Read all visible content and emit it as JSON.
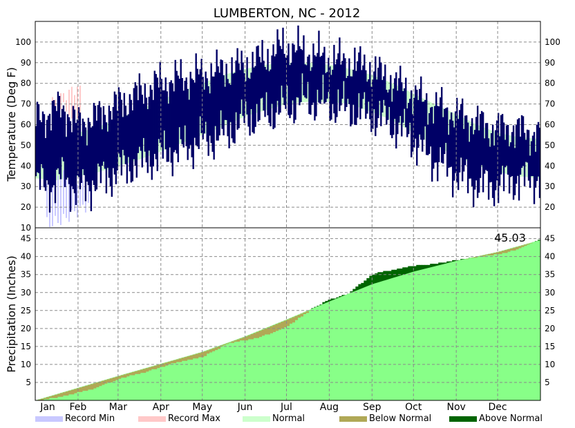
{
  "chart_data": [
    {
      "type": "bar",
      "title": "LUMBERTON, NC - 2012",
      "ylabel": "Temperature (Deg F)",
      "ylim": [
        10,
        110
      ],
      "yticks": [
        10,
        20,
        30,
        40,
        50,
        60,
        70,
        80,
        90,
        100
      ],
      "grid": true,
      "series_note": "daily high/low temperature bars over normal and record bands",
      "normal": {
        "day": [
          0,
          15,
          31,
          46,
          60,
          75,
          91,
          106,
          121,
          136,
          152,
          167,
          182,
          197,
          213,
          228,
          244,
          259,
          274,
          289,
          305,
          320,
          335,
          350,
          365
        ],
        "low": [
          34,
          33,
          35,
          37,
          40,
          43,
          47,
          51,
          55,
          59,
          64,
          67,
          70,
          71,
          71,
          70,
          66,
          62,
          56,
          50,
          45,
          40,
          37,
          35,
          34
        ],
        "high": [
          53,
          53,
          56,
          59,
          63,
          67,
          72,
          76,
          80,
          84,
          87,
          89,
          90,
          90,
          89,
          87,
          84,
          80,
          75,
          70,
          65,
          60,
          56,
          54,
          53
        ]
      },
      "record": {
        "day": [
          0,
          10,
          20,
          30,
          40
        ],
        "min": [
          13,
          12,
          14,
          18,
          22
        ],
        "max": [
          72,
          70,
          74,
          78,
          70
        ]
      },
      "observed": {
        "day": [
          0,
          10,
          20,
          30,
          45,
          60,
          75,
          90,
          105,
          120,
          135,
          150,
          165,
          180,
          195,
          210,
          225,
          240,
          255,
          270,
          285,
          300,
          315,
          330,
          345,
          365
        ],
        "low": [
          32,
          30,
          35,
          28,
          33,
          38,
          42,
          45,
          48,
          52,
          55,
          62,
          65,
          68,
          72,
          70,
          68,
          65,
          62,
          55,
          45,
          38,
          32,
          30,
          33,
          34
        ],
        "high": [
          62,
          66,
          68,
          60,
          64,
          70,
          75,
          80,
          82,
          84,
          86,
          88,
          92,
          98,
          95,
          92,
          90,
          88,
          82,
          76,
          70,
          66,
          62,
          58,
          58,
          55
        ]
      }
    },
    {
      "type": "area",
      "ylabel": "Precipitation (Inches)",
      "ylim": [
        0,
        48
      ],
      "yticks": [
        5,
        10,
        15,
        20,
        25,
        30,
        35,
        40,
        45
      ],
      "grid": true,
      "total_label": "45.03",
      "normal": {
        "day": [
          0,
          31,
          60,
          91,
          121,
          152,
          182,
          213,
          244,
          274,
          305,
          335,
          365
        ],
        "value": [
          0,
          3.5,
          6.8,
          10.2,
          13.5,
          17.8,
          22.5,
          27.5,
          32.3,
          35.8,
          38.8,
          41.3,
          44.5
        ]
      },
      "observed": {
        "day": [
          0,
          20,
          40,
          60,
          80,
          100,
          120,
          140,
          160,
          180,
          200,
          212,
          225,
          245,
          255,
          270,
          285,
          300,
          320,
          340,
          350,
          365
        ],
        "value": [
          0,
          1.4,
          3.3,
          6.2,
          8.2,
          10.6,
          12.2,
          16.2,
          17.5,
          20.4,
          25.7,
          28.2,
          29.7,
          35.6,
          36.2,
          37.5,
          38.0,
          38.9,
          40.0,
          41.2,
          42.4,
          45.03
        ]
      }
    }
  ],
  "x_axis": {
    "months": [
      "Jan",
      "Feb",
      "Mar",
      "Apr",
      "May",
      "Jun",
      "Jul",
      "Aug",
      "Sep",
      "Oct",
      "Nov",
      "Dec"
    ],
    "month_start_day": [
      0,
      31,
      60,
      91,
      121,
      152,
      182,
      213,
      244,
      274,
      305,
      335
    ],
    "days_in_year": 366
  },
  "legend": [
    {
      "label": "Record Min",
      "color": "#c8c8ff"
    },
    {
      "label": "Record Max",
      "color": "#ffc8c8"
    },
    {
      "label": "Normal",
      "color": "#ccffcc"
    },
    {
      "label": "Below Normal",
      "color": "#b0a856"
    },
    {
      "label": "Above Normal",
      "color": "#006400"
    }
  ],
  "colors": {
    "observed_temp": "#000066",
    "normal_temp": "#ccffcc",
    "record_min": "#c8c8ff",
    "record_max": "#ffc8c8",
    "precip_normal": "#88ff88",
    "precip_above": "#006400",
    "precip_below": "#b0a856"
  }
}
